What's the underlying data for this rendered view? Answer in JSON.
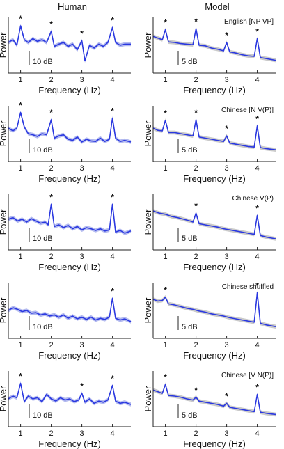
{
  "column_titles": [
    "Human",
    "Model"
  ],
  "colors": {
    "line": "#2a38e0",
    "band": "#9aa3ea",
    "model_gray": "#b8b8b8",
    "axis": "#222222"
  },
  "chart_data": [
    {
      "type": "line",
      "column": "Human",
      "row": 1,
      "condition": "",
      "xlabel": "Frequency (Hz)",
      "ylabel": "Power",
      "xlim": [
        0.6,
        4.6
      ],
      "ylim": [
        0,
        1
      ],
      "xticks": [
        "1",
        "2",
        "3",
        "4"
      ],
      "scalebar": "10 dB",
      "star_x": [
        1,
        2,
        3,
        4
      ],
      "x": [
        0.6,
        0.75,
        0.88,
        1.0,
        1.12,
        1.25,
        1.4,
        1.55,
        1.7,
        1.85,
        2.0,
        2.1,
        2.25,
        2.4,
        2.55,
        2.7,
        2.85,
        3.0,
        3.1,
        3.25,
        3.4,
        3.55,
        3.7,
        3.85,
        4.0,
        4.1,
        4.25,
        4.4,
        4.6
      ],
      "y": [
        0.55,
        0.6,
        0.5,
        0.85,
        0.6,
        0.55,
        0.62,
        0.57,
        0.6,
        0.55,
        0.75,
        0.48,
        0.52,
        0.55,
        0.48,
        0.52,
        0.42,
        0.58,
        0.22,
        0.5,
        0.45,
        0.52,
        0.48,
        0.55,
        0.82,
        0.55,
        0.5,
        0.52,
        0.52
      ]
    },
    {
      "type": "line",
      "column": "Model",
      "row": 1,
      "condition": "English [NP VP]",
      "xlabel": "Frequency (Hz)",
      "ylabel": "Power",
      "xlim": [
        0.6,
        4.6
      ],
      "ylim": [
        0,
        1
      ],
      "xticks": [
        "1",
        "2",
        "3",
        "4"
      ],
      "scalebar": "5 dB",
      "star_x": [
        1,
        2,
        3,
        4
      ],
      "x": [
        0.6,
        0.75,
        0.9,
        1.0,
        1.1,
        1.3,
        1.5,
        1.7,
        1.9,
        2.0,
        2.1,
        2.3,
        2.5,
        2.7,
        2.9,
        3.0,
        3.1,
        3.3,
        3.5,
        3.7,
        3.9,
        4.0,
        4.1,
        4.3,
        4.6
      ],
      "y": [
        0.66,
        0.63,
        0.6,
        0.78,
        0.56,
        0.55,
        0.53,
        0.52,
        0.51,
        0.8,
        0.5,
        0.49,
        0.45,
        0.43,
        0.4,
        0.55,
        0.38,
        0.36,
        0.33,
        0.31,
        0.3,
        0.62,
        0.28,
        0.26,
        0.23
      ]
    },
    {
      "type": "line",
      "column": "Human",
      "row": 2,
      "condition": "",
      "xlabel": "Frequency (Hz)",
      "ylabel": "Power",
      "xlim": [
        0.6,
        4.6
      ],
      "ylim": [
        0,
        1
      ],
      "xticks": [
        "1",
        "2",
        "3",
        "4"
      ],
      "scalebar": "10 dB",
      "star_x": [
        1,
        2,
        4
      ],
      "x": [
        0.6,
        0.75,
        0.88,
        1.0,
        1.12,
        1.25,
        1.4,
        1.55,
        1.7,
        1.85,
        2.0,
        2.1,
        2.25,
        2.4,
        2.55,
        2.7,
        2.85,
        3.0,
        3.15,
        3.3,
        3.45,
        3.6,
        3.75,
        3.9,
        4.0,
        4.1,
        4.25,
        4.4,
        4.6
      ],
      "y": [
        0.6,
        0.55,
        0.6,
        0.88,
        0.62,
        0.5,
        0.48,
        0.45,
        0.5,
        0.48,
        0.75,
        0.42,
        0.46,
        0.48,
        0.4,
        0.38,
        0.44,
        0.35,
        0.4,
        0.37,
        0.36,
        0.42,
        0.36,
        0.4,
        0.78,
        0.42,
        0.36,
        0.38,
        0.35
      ]
    },
    {
      "type": "line",
      "column": "Model",
      "row": 2,
      "condition": "Chinese [N V(P)]",
      "xlabel": "Frequency (Hz)",
      "ylabel": "Power",
      "xlim": [
        0.6,
        4.6
      ],
      "ylim": [
        0,
        1
      ],
      "xticks": [
        "1",
        "2",
        "3",
        "4"
      ],
      "scalebar": "5 dB",
      "star_x": [
        1,
        2,
        3,
        4
      ],
      "x": [
        0.6,
        0.75,
        0.9,
        1.0,
        1.1,
        1.3,
        1.5,
        1.7,
        1.9,
        2.0,
        2.1,
        2.3,
        2.5,
        2.7,
        2.9,
        3.0,
        3.1,
        3.3,
        3.5,
        3.7,
        3.9,
        4.0,
        4.1,
        4.3,
        4.6
      ],
      "y": [
        0.6,
        0.56,
        0.55,
        0.74,
        0.52,
        0.52,
        0.5,
        0.48,
        0.46,
        0.75,
        0.44,
        0.42,
        0.4,
        0.38,
        0.36,
        0.46,
        0.33,
        0.31,
        0.29,
        0.27,
        0.26,
        0.64,
        0.25,
        0.23,
        0.21
      ]
    },
    {
      "type": "line",
      "column": "Human",
      "row": 3,
      "condition": "",
      "xlabel": "Frequency (Hz)",
      "ylabel": "Power",
      "xlim": [
        0.6,
        4.6
      ],
      "ylim": [
        0,
        1
      ],
      "xticks": [
        "1",
        "2",
        "3",
        "4"
      ],
      "scalebar": "10 dB",
      "star_x": [
        2,
        4
      ],
      "x": [
        0.6,
        0.75,
        0.9,
        1.05,
        1.2,
        1.35,
        1.5,
        1.65,
        1.8,
        1.9,
        2.0,
        2.1,
        2.25,
        2.4,
        2.55,
        2.7,
        2.85,
        3.0,
        3.15,
        3.3,
        3.45,
        3.6,
        3.75,
        3.9,
        4.0,
        4.1,
        4.25,
        4.4,
        4.6
      ],
      "y": [
        0.55,
        0.58,
        0.52,
        0.55,
        0.5,
        0.56,
        0.52,
        0.48,
        0.5,
        0.45,
        0.82,
        0.42,
        0.45,
        0.4,
        0.44,
        0.38,
        0.42,
        0.36,
        0.4,
        0.38,
        0.35,
        0.38,
        0.34,
        0.36,
        0.82,
        0.32,
        0.35,
        0.3,
        0.34
      ]
    },
    {
      "type": "line",
      "column": "Model",
      "row": 3,
      "condition": "Chinese V(P)",
      "xlabel": "Frequency (Hz)",
      "ylabel": "Power",
      "xlim": [
        0.6,
        4.6
      ],
      "ylim": [
        0,
        1
      ],
      "xticks": [
        "1",
        "2",
        "3",
        "4"
      ],
      "scalebar": "5 dB",
      "star_x": [
        2,
        4
      ],
      "x": [
        0.6,
        0.8,
        1.0,
        1.2,
        1.4,
        1.6,
        1.8,
        1.9,
        2.0,
        2.1,
        2.3,
        2.5,
        2.7,
        2.9,
        3.1,
        3.3,
        3.5,
        3.7,
        3.9,
        4.0,
        4.1,
        4.3,
        4.6
      ],
      "y": [
        0.7,
        0.66,
        0.64,
        0.6,
        0.58,
        0.55,
        0.52,
        0.5,
        0.66,
        0.47,
        0.45,
        0.43,
        0.41,
        0.38,
        0.36,
        0.34,
        0.32,
        0.3,
        0.28,
        0.62,
        0.26,
        0.23,
        0.2
      ]
    },
    {
      "type": "line",
      "column": "Human",
      "row": 4,
      "condition": "",
      "xlabel": "Frequency (Hz)",
      "ylabel": "Power",
      "xlim": [
        0.6,
        4.6
      ],
      "ylim": [
        0,
        1
      ],
      "xticks": [
        "1",
        "2",
        "3",
        "4"
      ],
      "scalebar": "10 dB",
      "star_x": [
        4
      ],
      "x": [
        0.6,
        0.75,
        0.9,
        1.05,
        1.2,
        1.35,
        1.5,
        1.65,
        1.8,
        1.95,
        2.1,
        2.25,
        2.4,
        2.55,
        2.7,
        2.85,
        3.0,
        3.15,
        3.3,
        3.45,
        3.6,
        3.75,
        3.9,
        4.0,
        4.1,
        4.25,
        4.4,
        4.6
      ],
      "y": [
        0.5,
        0.55,
        0.52,
        0.48,
        0.5,
        0.45,
        0.46,
        0.42,
        0.44,
        0.4,
        0.42,
        0.38,
        0.42,
        0.36,
        0.4,
        0.35,
        0.38,
        0.34,
        0.38,
        0.33,
        0.36,
        0.34,
        0.38,
        0.72,
        0.36,
        0.33,
        0.35,
        0.3
      ]
    },
    {
      "type": "line",
      "column": "Model",
      "row": 4,
      "condition": "Chinese shuffled",
      "xlabel": "Frequency (Hz)",
      "ylabel": "Power",
      "xlim": [
        0.6,
        4.6
      ],
      "ylim": [
        0,
        1
      ],
      "xticks": [
        "1",
        "2",
        "3",
        "4"
      ],
      "scalebar": "5 dB",
      "star_x": [
        1,
        4
      ],
      "x": [
        0.6,
        0.75,
        0.9,
        1.0,
        1.1,
        1.3,
        1.5,
        1.7,
        1.9,
        2.1,
        2.3,
        2.5,
        2.7,
        2.9,
        3.1,
        3.3,
        3.5,
        3.7,
        3.9,
        4.0,
        4.1,
        4.3,
        4.6
      ],
      "y": [
        0.7,
        0.67,
        0.68,
        0.74,
        0.62,
        0.6,
        0.57,
        0.54,
        0.52,
        0.49,
        0.47,
        0.44,
        0.42,
        0.4,
        0.37,
        0.35,
        0.33,
        0.31,
        0.29,
        0.82,
        0.27,
        0.24,
        0.21
      ]
    },
    {
      "type": "line",
      "column": "Human",
      "row": 5,
      "condition": "",
      "xlabel": "Frequency (Hz)",
      "ylabel": "Power",
      "xlim": [
        0.6,
        4.6
      ],
      "ylim": [
        0,
        1
      ],
      "xticks": [
        "1",
        "2",
        "3",
        "4"
      ],
      "scalebar": "10 dB",
      "star_x": [
        1,
        3,
        4
      ],
      "x": [
        0.6,
        0.75,
        0.88,
        1.0,
        1.12,
        1.25,
        1.4,
        1.55,
        1.7,
        1.85,
        2.0,
        2.15,
        2.3,
        2.45,
        2.6,
        2.75,
        2.9,
        3.0,
        3.1,
        3.25,
        3.4,
        3.55,
        3.7,
        3.85,
        4.0,
        4.1,
        4.25,
        4.4,
        4.6
      ],
      "y": [
        0.5,
        0.55,
        0.52,
        0.78,
        0.45,
        0.55,
        0.5,
        0.52,
        0.45,
        0.58,
        0.5,
        0.46,
        0.52,
        0.48,
        0.5,
        0.45,
        0.48,
        0.6,
        0.44,
        0.5,
        0.42,
        0.46,
        0.44,
        0.48,
        0.74,
        0.46,
        0.42,
        0.44,
        0.4
      ]
    },
    {
      "type": "line",
      "column": "Model",
      "row": 5,
      "condition": "Chinese [V N(P)]",
      "xlabel": "Frequency (Hz)",
      "ylabel": "Power",
      "xlim": [
        0.6,
        4.6
      ],
      "ylim": [
        0,
        1
      ],
      "xticks": [
        "1",
        "2",
        "3",
        "4"
      ],
      "scalebar": "5 dB",
      "star_x": [
        1,
        2,
        3,
        4
      ],
      "x": [
        0.6,
        0.75,
        0.9,
        1.0,
        1.1,
        1.3,
        1.5,
        1.7,
        1.9,
        2.0,
        2.1,
        2.3,
        2.5,
        2.7,
        2.9,
        3.0,
        3.1,
        3.3,
        3.5,
        3.7,
        3.9,
        4.0,
        4.1,
        4.3,
        4.6
      ],
      "y": [
        0.66,
        0.63,
        0.6,
        0.76,
        0.56,
        0.55,
        0.53,
        0.5,
        0.48,
        0.53,
        0.46,
        0.44,
        0.42,
        0.4,
        0.37,
        0.42,
        0.35,
        0.33,
        0.31,
        0.29,
        0.27,
        0.58,
        0.26,
        0.24,
        0.22
      ]
    }
  ]
}
